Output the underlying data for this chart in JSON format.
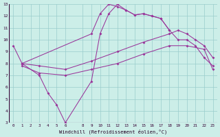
{
  "xlabel": "Windchill (Refroidissement éolien,°C)",
  "bg_color": "#cceee8",
  "line_color": "#993399",
  "grid_color": "#99cccc",
  "xlim": [
    -0.5,
    23.5
  ],
  "ylim": [
    3,
    13
  ],
  "xticks": [
    0,
    1,
    2,
    3,
    4,
    5,
    6,
    8,
    9,
    10,
    11,
    12,
    13,
    14,
    15,
    16,
    17,
    18,
    19,
    20,
    21,
    22,
    23
  ],
  "yticks": [
    3,
    4,
    5,
    6,
    7,
    8,
    9,
    10,
    11,
    12,
    13
  ],
  "curve1_x": [
    0,
    1,
    9,
    10,
    11,
    12,
    13,
    14,
    15,
    16,
    17,
    18,
    19,
    20,
    21,
    22,
    23
  ],
  "curve1_y": [
    9.5,
    8.0,
    10.5,
    12.2,
    13.0,
    12.8,
    12.5,
    12.1,
    12.2,
    12.0,
    11.8,
    10.8,
    10.0,
    10.0,
    9.5,
    8.5,
    7.8
  ],
  "curve2_x": [
    1,
    3,
    4,
    5,
    6,
    9,
    10,
    11,
    12,
    13,
    14,
    15,
    16,
    17,
    18,
    19,
    20,
    21,
    22,
    23
  ],
  "curve2_y": [
    8.0,
    7.0,
    5.5,
    4.5,
    3.0,
    6.5,
    10.5,
    12.2,
    13.0,
    12.5,
    12.1,
    12.2,
    12.0,
    11.8,
    10.8,
    null,
    null,
    null,
    null,
    null
  ],
  "curve3_x": [
    1,
    3,
    6,
    9,
    12,
    15,
    18,
    19,
    20,
    21,
    22,
    23
  ],
  "curve3_y": [
    8.0,
    7.8,
    7.5,
    8.2,
    9.0,
    9.8,
    10.5,
    10.8,
    10.5,
    10.0,
    9.5,
    8.5
  ],
  "curve4_x": [
    1,
    3,
    6,
    9,
    12,
    15,
    18,
    20,
    22,
    23
  ],
  "curve4_y": [
    7.8,
    7.2,
    7.0,
    7.5,
    8.0,
    8.8,
    9.5,
    9.5,
    9.2,
    7.5
  ]
}
